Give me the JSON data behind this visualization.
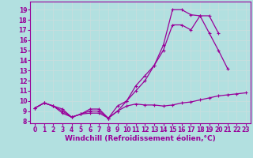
{
  "background_color": "#b2e0e0",
  "grid_color": "#c8dede",
  "line_color": "#990099",
  "marker": "+",
  "xlabel": "Windchill (Refroidissement éolien,°C)",
  "xlabel_fontsize": 6.5,
  "tick_fontsize": 5.5,
  "xlim": [
    -0.5,
    23.5
  ],
  "ylim": [
    7.8,
    19.8
  ],
  "yticks": [
    8,
    9,
    10,
    11,
    12,
    13,
    14,
    15,
    16,
    17,
    18,
    19
  ],
  "xticks": [
    0,
    1,
    2,
    3,
    4,
    5,
    6,
    7,
    8,
    9,
    10,
    11,
    12,
    13,
    14,
    15,
    16,
    17,
    18,
    19,
    20,
    21,
    22,
    23
  ],
  "series": [
    {
      "x": [
        0,
        1,
        2,
        3,
        4,
        5,
        6,
        7,
        8,
        9,
        10,
        11,
        12,
        13,
        14,
        15,
        16,
        17,
        18,
        19,
        20,
        21,
        22,
        23
      ],
      "y": [
        9.3,
        9.8,
        9.5,
        8.8,
        8.4,
        8.7,
        8.8,
        8.8,
        8.3,
        9.0,
        9.5,
        9.7,
        9.6,
        9.6,
        9.5,
        9.6,
        9.8,
        9.9,
        10.1,
        10.3,
        10.5,
        10.6,
        10.7,
        10.8
      ]
    },
    {
      "x": [
        0,
        1,
        2,
        3,
        4,
        5,
        6,
        7,
        8,
        9,
        10,
        11,
        12,
        13,
        14,
        15,
        16,
        17,
        18,
        19,
        20,
        21
      ],
      "y": [
        9.3,
        9.8,
        9.5,
        9.0,
        8.4,
        8.7,
        9.0,
        9.0,
        8.3,
        9.0,
        10.0,
        11.5,
        12.5,
        13.5,
        15.5,
        19.0,
        19.0,
        18.5,
        18.4,
        16.7,
        15.0,
        13.2
      ]
    },
    {
      "x": [
        0,
        1,
        2,
        3,
        4,
        5,
        6,
        7,
        8,
        9,
        10,
        11,
        12,
        13,
        14,
        15,
        16,
        17,
        18,
        19,
        20
      ],
      "y": [
        9.3,
        9.8,
        9.5,
        9.2,
        8.4,
        8.7,
        9.2,
        9.2,
        8.3,
        9.5,
        10.0,
        11.0,
        12.0,
        13.5,
        15.0,
        17.5,
        17.5,
        17.0,
        18.4,
        18.4,
        16.7
      ]
    }
  ]
}
